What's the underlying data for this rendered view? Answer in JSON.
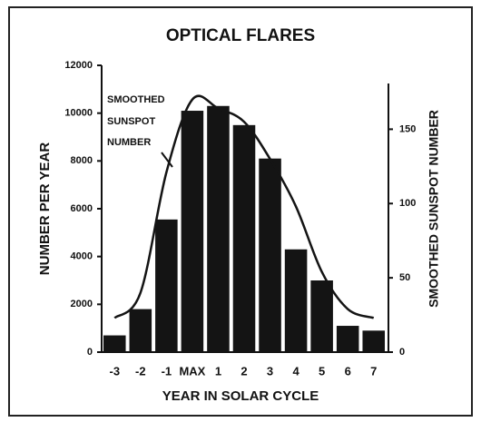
{
  "chart_data": {
    "type": "bar",
    "title": "OPTICAL FLARES",
    "categories": [
      "-3",
      "-2",
      "-1",
      "MAX",
      "1",
      "2",
      "3",
      "4",
      "5",
      "6",
      "7"
    ],
    "series": [
      {
        "type": "bar",
        "color": "#141414",
        "values": [
          700,
          1800,
          5550,
          10100,
          10300,
          9500,
          8100,
          4300,
          3000,
          1100,
          900
        ]
      },
      {
        "type": "line",
        "axis": "y2",
        "color": "#141414",
        "values": [
          23,
          40,
          121,
          170,
          164,
          155,
          130,
          98,
          54,
          29,
          23
        ]
      }
    ],
    "ylim": [
      0,
      12000
    ],
    "yticks": [
      0,
      2000,
      4000,
      6000,
      8000,
      10000,
      12000
    ],
    "y2lim": [
      0,
      193
    ],
    "y2ticks": [
      0,
      50,
      100,
      150
    ],
    "xlabel": "YEAR IN SOLAR CYCLE",
    "ylabel": "NUMBER PER YEAR",
    "y2label": "SMOOTHED SUNSPOT NUMBER",
    "annotation": [
      "SMOOTHED",
      "SUNSPOT",
      "NUMBER"
    ]
  }
}
